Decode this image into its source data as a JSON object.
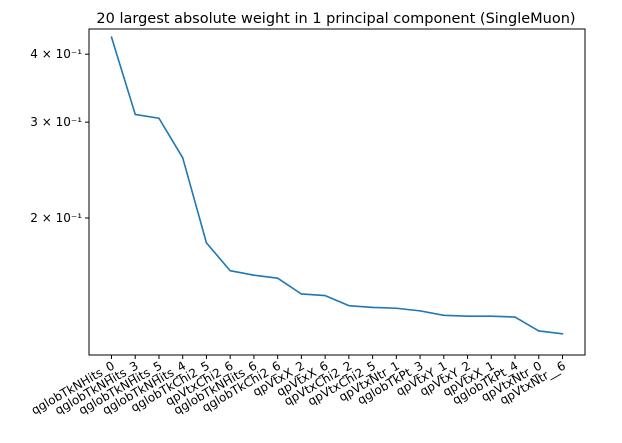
{
  "chart_data": {
    "type": "line",
    "title": "20 largest absolute weight in 1 principal component (SingleMuon)",
    "xlabel": "",
    "ylabel": "",
    "yscale": "log",
    "ylim": [
      0.112,
      0.445
    ],
    "grid": false,
    "legend": "none",
    "line_color": "#1f77b4",
    "categories": [
      "qglobTkNHits_0",
      "qglobTkNHits_3",
      "qglobTkNHits_5",
      "qglobTkNHits_4",
      "qglobTkChi2_5",
      "qpVtxChi2_6",
      "qglobTkNHits_6",
      "qglobTkChi2_6",
      "qpVtxX_2",
      "qpVtxX_6",
      "qpVtxChi2_2",
      "qpVtxChi2_5",
      "qpVtxNtr_1",
      "qglobTkPt_3",
      "qpVtxY_1",
      "qpVtxY_2",
      "qpVtxX_1",
      "qglobTkPt_4",
      "qpVtxNtr_0",
      "qpVtxNtr__6"
    ],
    "values": [
      0.43,
      0.31,
      0.305,
      0.258,
      0.18,
      0.16,
      0.157,
      0.155,
      0.145,
      0.144,
      0.138,
      0.137,
      0.1365,
      0.135,
      0.1325,
      0.132,
      0.132,
      0.1315,
      0.124,
      0.1225
    ],
    "y_ticks": [
      {
        "value": 0.4,
        "label": "4 × 10⁻¹"
      },
      {
        "value": 0.3,
        "label": "3 × 10⁻¹"
      },
      {
        "value": 0.2,
        "label": "2 × 10⁻¹"
      }
    ]
  }
}
